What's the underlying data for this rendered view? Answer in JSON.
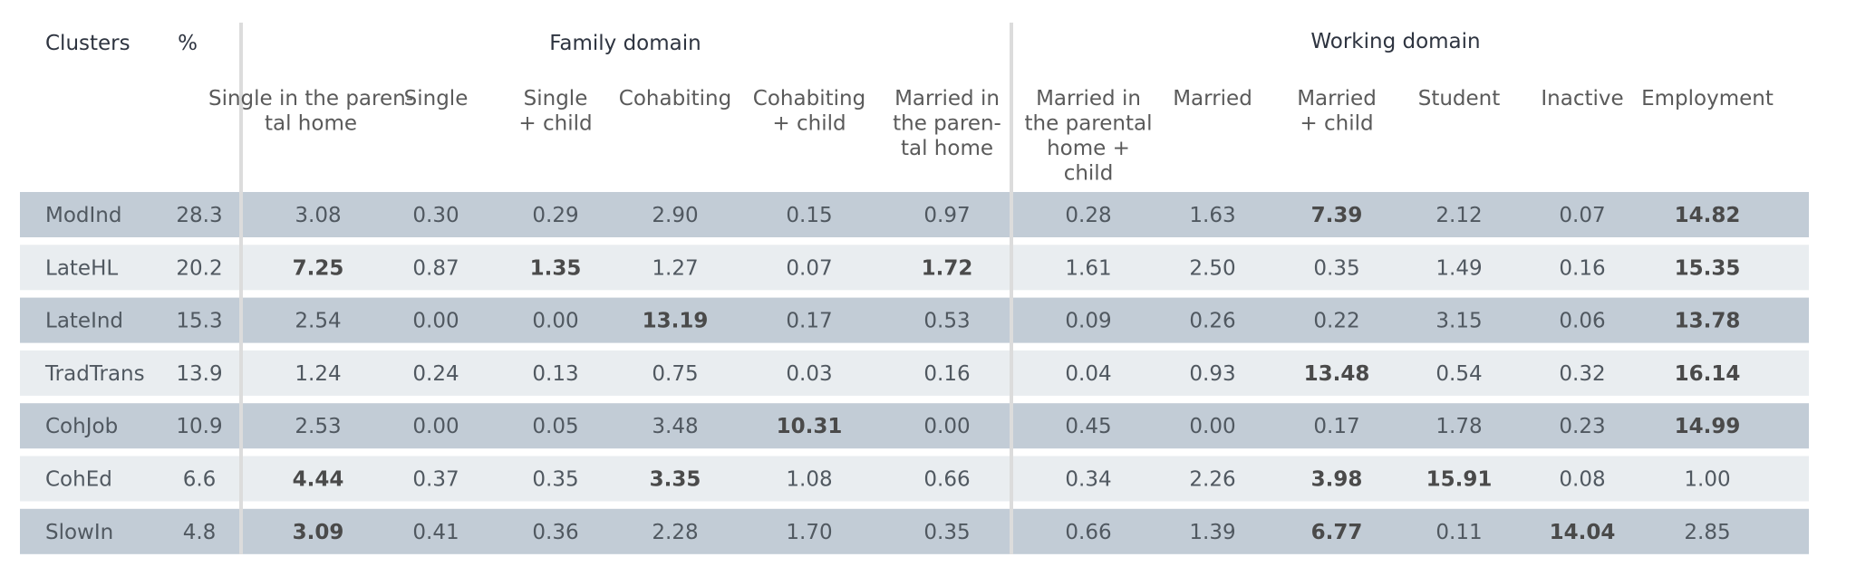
{
  "chart_data": {
    "type": "table",
    "header": {
      "clusters": "Clusters",
      "percent": "%",
      "family_domain": "Family domain",
      "working_domain": "Working domain"
    },
    "columns": [
      "Single in the paren-\ntal home",
      "Single",
      "Single\n+ child",
      "Cohabiting",
      "Cohabiting\n+ child",
      "Married in\nthe paren-\ntal home",
      "Married in\nthe parental\nhome +\nchild",
      "Married",
      "Married\n+ child",
      "Student",
      "Inactive",
      "Employment"
    ],
    "rows": [
      {
        "cluster": "ModInd",
        "percent": "28.3",
        "values": [
          "3.08",
          "0.30",
          "0.29",
          "2.90",
          "0.15",
          "0.97",
          "0.28",
          "1.63",
          "7.39",
          "2.12",
          "0.07",
          "14.82"
        ],
        "bold": [
          false,
          false,
          false,
          false,
          false,
          false,
          false,
          false,
          true,
          false,
          false,
          true
        ]
      },
      {
        "cluster": "LateHL",
        "percent": "20.2",
        "values": [
          "7.25",
          "0.87",
          "1.35",
          "1.27",
          "0.07",
          "1.72",
          "1.61",
          "2.50",
          "0.35",
          "1.49",
          "0.16",
          "15.35"
        ],
        "bold": [
          true,
          false,
          true,
          false,
          false,
          true,
          false,
          false,
          false,
          false,
          false,
          true
        ]
      },
      {
        "cluster": "LateInd",
        "percent": "15.3",
        "values": [
          "2.54",
          "0.00",
          "0.00",
          "13.19",
          "0.17",
          "0.53",
          "0.09",
          "0.26",
          "0.22",
          "3.15",
          "0.06",
          "13.78"
        ],
        "bold": [
          false,
          false,
          false,
          true,
          false,
          false,
          false,
          false,
          false,
          false,
          false,
          true
        ]
      },
      {
        "cluster": "TradTrans",
        "percent": "13.9",
        "values": [
          "1.24",
          "0.24",
          "0.13",
          "0.75",
          "0.03",
          "0.16",
          "0.04",
          "0.93",
          "13.48",
          "0.54",
          "0.32",
          "16.14"
        ],
        "bold": [
          false,
          false,
          false,
          false,
          false,
          false,
          false,
          false,
          true,
          false,
          false,
          true
        ]
      },
      {
        "cluster": "CohJob",
        "percent": "10.9",
        "values": [
          "2.53",
          "0.00",
          "0.05",
          "3.48",
          "10.31",
          "0.00",
          "0.45",
          "0.00",
          "0.17",
          "1.78",
          "0.23",
          "14.99"
        ],
        "bold": [
          false,
          false,
          false,
          false,
          true,
          false,
          false,
          false,
          false,
          false,
          false,
          true
        ]
      },
      {
        "cluster": "CohEd",
        "percent": "6.6",
        "values": [
          "4.44",
          "0.37",
          "0.35",
          "3.35",
          "1.08",
          "0.66",
          "0.34",
          "2.26",
          "3.98",
          "15.91",
          "0.08",
          "1.00"
        ],
        "bold": [
          true,
          false,
          false,
          true,
          false,
          false,
          false,
          false,
          true,
          true,
          false,
          false
        ]
      },
      {
        "cluster": "SlowIn",
        "percent": "4.8",
        "values": [
          "3.09",
          "0.41",
          "0.36",
          "2.28",
          "1.70",
          "0.35",
          "0.66",
          "1.39",
          "6.77",
          "0.11",
          "14.04",
          "2.85"
        ],
        "bold": [
          true,
          false,
          false,
          false,
          false,
          false,
          false,
          false,
          true,
          false,
          true,
          false
        ]
      }
    ],
    "colors": {
      "row_dark": "#c2ccd6",
      "row_light": "#e9edf0",
      "separator": "#dcdcdc"
    }
  }
}
